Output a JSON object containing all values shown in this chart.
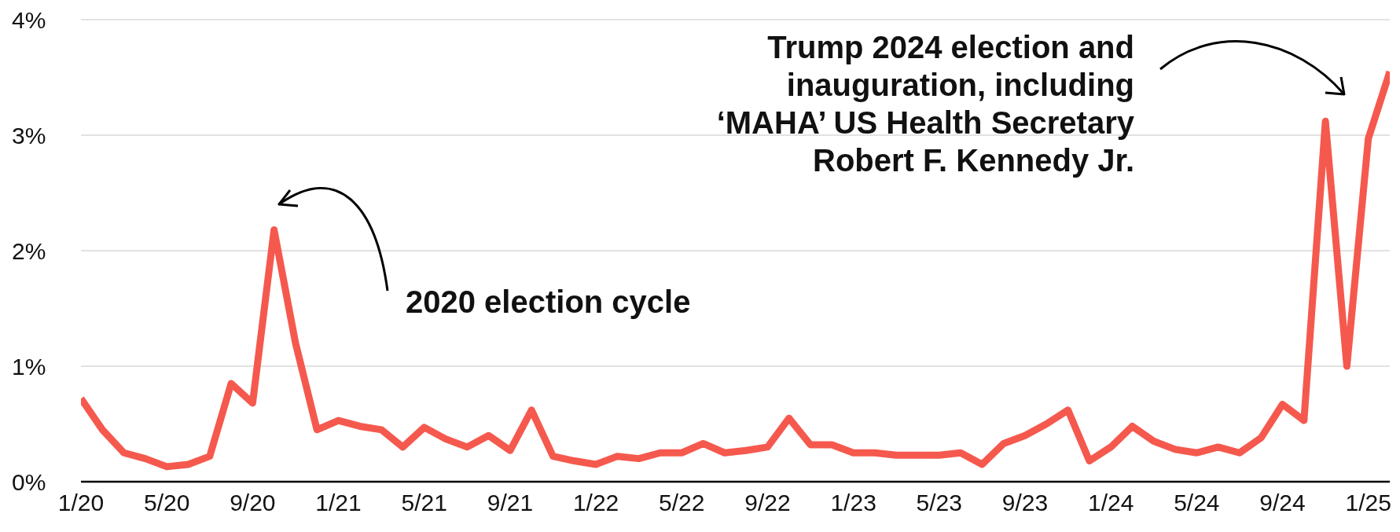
{
  "chart_data": {
    "type": "line",
    "x": [
      "2020-01",
      "2020-02",
      "2020-03",
      "2020-04",
      "2020-05",
      "2020-06",
      "2020-07",
      "2020-08",
      "2020-09",
      "2020-10",
      "2020-11",
      "2020-12",
      "2021-01",
      "2021-02",
      "2021-03",
      "2021-04",
      "2021-05",
      "2021-06",
      "2021-07",
      "2021-08",
      "2021-09",
      "2021-10",
      "2021-11",
      "2021-12",
      "2022-01",
      "2022-02",
      "2022-03",
      "2022-04",
      "2022-05",
      "2022-06",
      "2022-07",
      "2022-08",
      "2022-09",
      "2022-10",
      "2022-11",
      "2022-12",
      "2023-01",
      "2023-02",
      "2023-03",
      "2023-04",
      "2023-05",
      "2023-06",
      "2023-07",
      "2023-08",
      "2023-09",
      "2023-10",
      "2023-11",
      "2023-12",
      "2024-01",
      "2024-02",
      "2024-03",
      "2024-04",
      "2024-05",
      "2024-06",
      "2024-07",
      "2024-08",
      "2024-09",
      "2024-10",
      "2024-11",
      "2024-12",
      "2025-01",
      "2025-02"
    ],
    "series": [
      {
        "color": "#f5594e",
        "values": [
          0.72,
          0.45,
          0.25,
          0.2,
          0.13,
          0.15,
          0.22,
          0.85,
          0.68,
          2.18,
          1.2,
          0.45,
          0.53,
          0.48,
          0.45,
          0.3,
          0.47,
          0.37,
          0.3,
          0.4,
          0.27,
          0.62,
          0.22,
          0.18,
          0.15,
          0.22,
          0.2,
          0.25,
          0.25,
          0.33,
          0.25,
          0.27,
          0.3,
          0.55,
          0.32,
          0.32,
          0.25,
          0.25,
          0.23,
          0.23,
          0.23,
          0.25,
          0.15,
          0.33,
          0.4,
          0.5,
          0.62,
          0.18,
          0.3,
          0.48,
          0.35,
          0.28,
          0.25,
          0.3,
          0.25,
          0.38,
          0.67,
          0.53,
          3.12,
          1.0,
          2.97,
          3.55
        ]
      }
    ],
    "xlim": [
      "2020-01",
      "2025-02"
    ],
    "xticks": [
      {
        "value": "2020-01",
        "label": "1/20"
      },
      {
        "value": "2020-05",
        "label": "5/20"
      },
      {
        "value": "2020-09",
        "label": "9/20"
      },
      {
        "value": "2021-01",
        "label": "1/21"
      },
      {
        "value": "2021-05",
        "label": "5/21"
      },
      {
        "value": "2021-09",
        "label": "9/21"
      },
      {
        "value": "2022-01",
        "label": "1/22"
      },
      {
        "value": "2022-05",
        "label": "5/22"
      },
      {
        "value": "2022-09",
        "label": "9/22"
      },
      {
        "value": "2023-01",
        "label": "1/23"
      },
      {
        "value": "2023-05",
        "label": "5/23"
      },
      {
        "value": "2023-09",
        "label": "9/23"
      },
      {
        "value": "2024-01",
        "label": "1/24"
      },
      {
        "value": "2024-05",
        "label": "5/24"
      },
      {
        "value": "2024-09",
        "label": "9/24"
      },
      {
        "value": "2025-01",
        "label": "1/25"
      }
    ],
    "ylim": [
      0,
      4
    ],
    "yticks": [
      {
        "value": 0,
        "label": "0%"
      },
      {
        "value": 1,
        "label": "1%"
      },
      {
        "value": 2,
        "label": "2%"
      },
      {
        "value": 3,
        "label": "3%"
      },
      {
        "value": 4,
        "label": "4%"
      }
    ],
    "grid": "y",
    "legend": false,
    "marker": "none",
    "line_style": "solid",
    "annotations": [
      "2020 election cycle",
      "Trump 2024 election and\ninauguration, including\n‘MAHA’ US Health Secretary\nRobert F. Kennedy Jr."
    ]
  }
}
